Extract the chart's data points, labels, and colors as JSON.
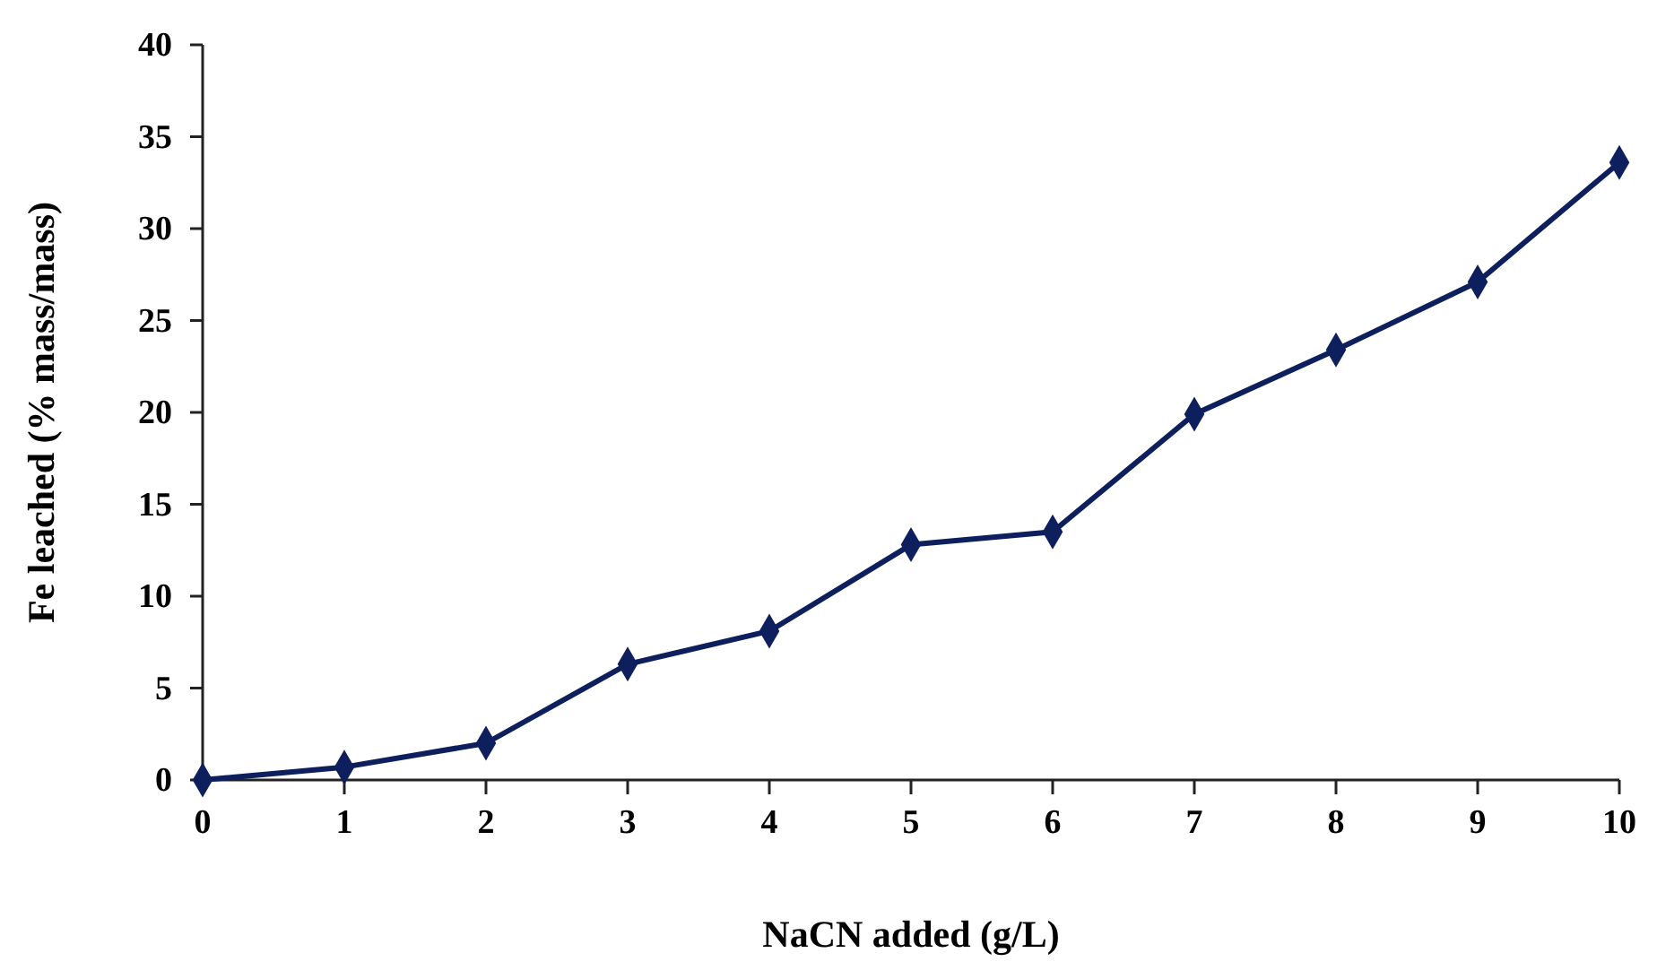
{
  "chart_data": {
    "type": "line",
    "xlabel": "NaCN added (g/L)",
    "ylabel": "Fe  leached (% mass/mass)",
    "x": [
      0,
      1,
      2,
      3,
      4,
      5,
      6,
      7,
      8,
      9,
      10
    ],
    "series": [
      {
        "color": "#0d1f5c",
        "values": [
          0,
          0.7,
          2.0,
          6.3,
          8.1,
          12.8,
          13.5,
          19.9,
          23.4,
          27.1,
          33.6
        ]
      }
    ],
    "xlim": [
      0,
      10
    ],
    "xticks": [
      0,
      1,
      2,
      3,
      4,
      5,
      6,
      7,
      8,
      9,
      10
    ],
    "ylim": [
      0,
      40
    ],
    "yticks": [
      0,
      5,
      10,
      15,
      20,
      25,
      30,
      35,
      40
    ],
    "marker": "diamond",
    "line_style": "solid",
    "grid": false
  }
}
